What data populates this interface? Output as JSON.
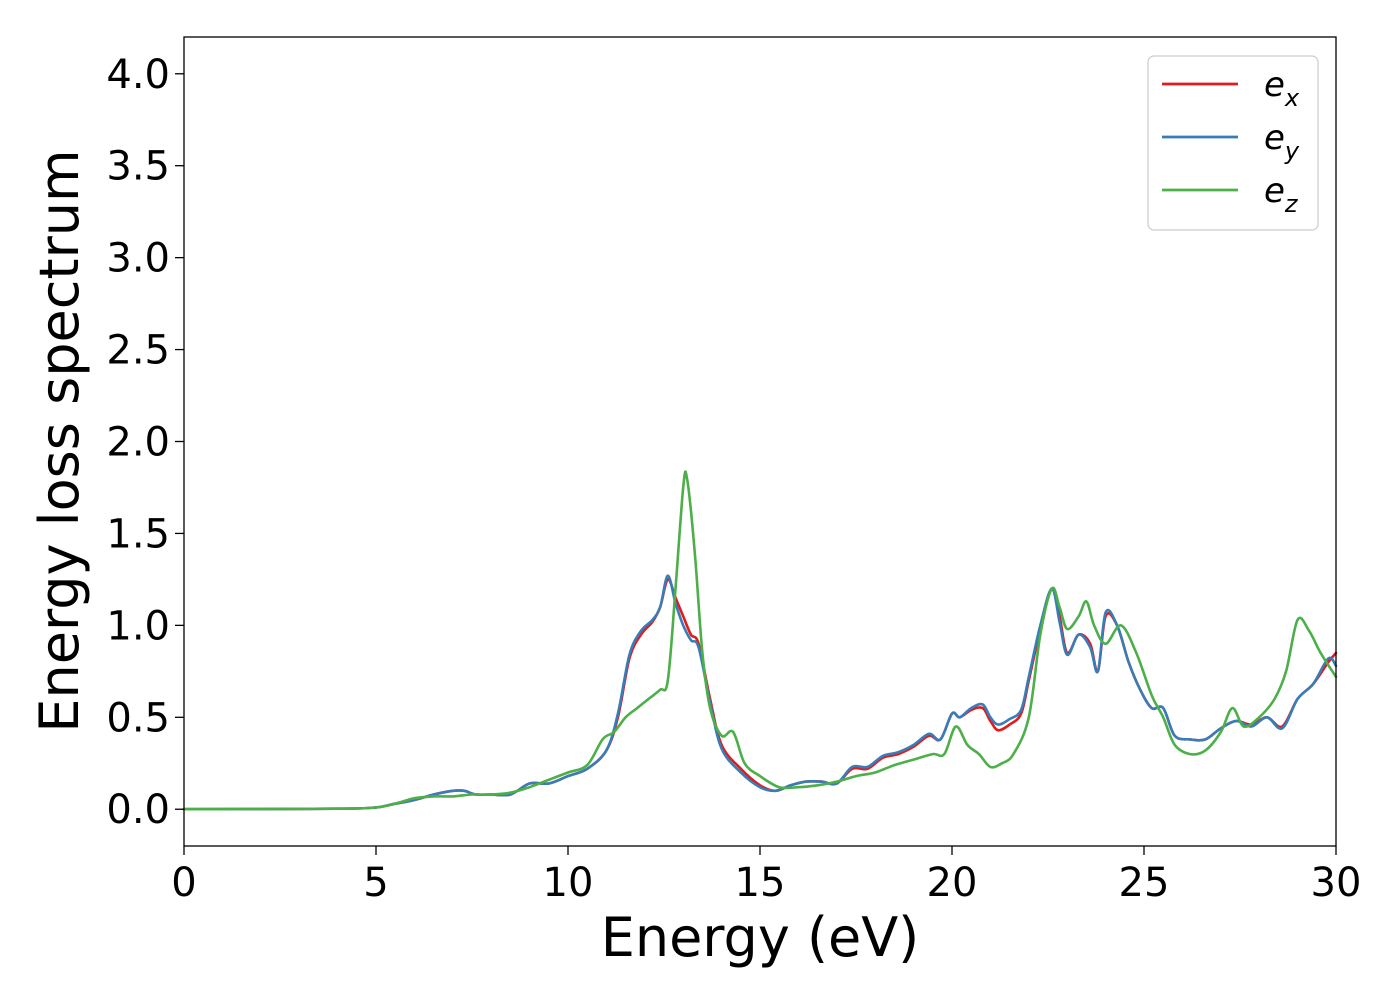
{
  "chart_data": {
    "type": "line",
    "title": "",
    "xlabel": "Energy (eV)",
    "ylabel": "Energy loss spectrum",
    "xlim": [
      0,
      30
    ],
    "ylim": [
      -0.2,
      4.2
    ],
    "xticks": [
      0,
      5,
      10,
      15,
      20,
      25,
      30
    ],
    "yticks": [
      0.0,
      0.5,
      1.0,
      1.5,
      2.0,
      2.5,
      3.0,
      3.5,
      4.0
    ],
    "xtick_labels": [
      "0",
      "5",
      "10",
      "15",
      "20",
      "25",
      "30"
    ],
    "ytick_labels": [
      "0.0",
      "0.5",
      "1.0",
      "1.5",
      "2.0",
      "2.5",
      "3.0",
      "3.5",
      "4.0"
    ],
    "grid": false,
    "legend_position": "top-right",
    "series": [
      {
        "name": "e_x",
        "base": "e",
        "sub": "x",
        "color": "#e41a1c",
        "x": [
          0,
          4,
          5,
          5.5,
          6,
          6.5,
          7,
          7.3,
          7.6,
          8,
          8.5,
          9,
          9.5,
          10,
          10.5,
          11,
          11.3,
          11.6,
          11.9,
          12.2,
          12.4,
          12.6,
          12.8,
          13,
          13.2,
          13.4,
          13.7,
          14,
          14.5,
          15,
          15.4,
          15.8,
          16.2,
          16.6,
          17,
          17.4,
          17.8,
          18.2,
          18.6,
          19,
          19.4,
          19.7,
          20,
          20.2,
          20.5,
          20.8,
          21,
          21.2,
          21.5,
          21.8,
          22,
          22.3,
          22.6,
          22.8,
          23,
          23.3,
          23.6,
          23.8,
          24,
          24.3,
          24.6,
          24.9,
          25.2,
          25.5,
          25.8,
          26.2,
          26.6,
          27,
          27.4,
          27.8,
          28.2,
          28.6,
          29,
          29.4,
          29.8,
          30
        ],
        "y": [
          0,
          0.003,
          0.01,
          0.03,
          0.05,
          0.08,
          0.1,
          0.1,
          0.08,
          0.08,
          0.08,
          0.14,
          0.14,
          0.18,
          0.22,
          0.32,
          0.5,
          0.82,
          0.95,
          1.02,
          1.1,
          1.25,
          1.15,
          1.05,
          0.95,
          0.9,
          0.6,
          0.35,
          0.22,
          0.13,
          0.1,
          0.13,
          0.15,
          0.15,
          0.14,
          0.22,
          0.22,
          0.28,
          0.3,
          0.34,
          0.4,
          0.38,
          0.52,
          0.5,
          0.54,
          0.55,
          0.48,
          0.43,
          0.46,
          0.52,
          0.7,
          0.98,
          1.2,
          1.05,
          0.85,
          0.95,
          0.9,
          0.75,
          1.05,
          1.0,
          0.8,
          0.65,
          0.55,
          0.55,
          0.4,
          0.38,
          0.38,
          0.44,
          0.48,
          0.46,
          0.5,
          0.45,
          0.6,
          0.68,
          0.8,
          0.85
        ]
      },
      {
        "name": "e_y",
        "base": "e",
        "sub": "y",
        "color": "#377eb8",
        "x": [
          0,
          4,
          5,
          5.5,
          6,
          6.5,
          7,
          7.3,
          7.6,
          8,
          8.5,
          9,
          9.5,
          10,
          10.5,
          11,
          11.3,
          11.6,
          11.9,
          12.2,
          12.4,
          12.6,
          12.8,
          13,
          13.2,
          13.4,
          13.7,
          14,
          14.5,
          15,
          15.4,
          15.8,
          16.2,
          16.6,
          17,
          17.4,
          17.8,
          18.2,
          18.6,
          19,
          19.4,
          19.7,
          20,
          20.2,
          20.5,
          20.8,
          21,
          21.2,
          21.5,
          21.8,
          22,
          22.3,
          22.6,
          22.8,
          23,
          23.3,
          23.6,
          23.8,
          24,
          24.3,
          24.6,
          24.9,
          25.2,
          25.5,
          25.8,
          26.2,
          26.6,
          27,
          27.4,
          27.8,
          28.2,
          28.6,
          29,
          29.4,
          29.8,
          30
        ],
        "y": [
          0,
          0.003,
          0.01,
          0.03,
          0.05,
          0.08,
          0.1,
          0.1,
          0.08,
          0.08,
          0.08,
          0.14,
          0.14,
          0.18,
          0.22,
          0.32,
          0.52,
          0.84,
          0.97,
          1.03,
          1.1,
          1.27,
          1.12,
          1.0,
          0.92,
          0.88,
          0.58,
          0.33,
          0.2,
          0.12,
          0.1,
          0.13,
          0.15,
          0.15,
          0.14,
          0.23,
          0.23,
          0.29,
          0.31,
          0.35,
          0.41,
          0.38,
          0.52,
          0.5,
          0.55,
          0.57,
          0.5,
          0.46,
          0.49,
          0.54,
          0.72,
          1.0,
          1.2,
          1.02,
          0.84,
          0.95,
          0.88,
          0.75,
          1.07,
          1.0,
          0.8,
          0.65,
          0.55,
          0.55,
          0.4,
          0.38,
          0.38,
          0.44,
          0.48,
          0.45,
          0.5,
          0.44,
          0.6,
          0.68,
          0.82,
          0.78
        ]
      },
      {
        "name": "e_z",
        "base": "e",
        "sub": "z",
        "color": "#4daf4a",
        "x": [
          0,
          4,
          5,
          5.5,
          6,
          6.5,
          7,
          7.5,
          8,
          8.5,
          9,
          9.5,
          10,
          10.5,
          10.9,
          11.2,
          11.5,
          11.8,
          12.1,
          12.4,
          12.6,
          12.8,
          13,
          13.1,
          13.3,
          13.5,
          13.7,
          14,
          14.3,
          14.6,
          15,
          15.5,
          16,
          16.5,
          17,
          17.5,
          18,
          18.5,
          19,
          19.5,
          19.8,
          20.1,
          20.4,
          20.7,
          21,
          21.3,
          21.6,
          22,
          22.3,
          22.6,
          22.8,
          23,
          23.3,
          23.5,
          23.7,
          24,
          24.4,
          24.8,
          25.2,
          25.5,
          25.8,
          26.2,
          26.6,
          27,
          27.3,
          27.6,
          28,
          28.4,
          28.7,
          29,
          29.3,
          29.6,
          30
        ],
        "y": [
          0,
          0.003,
          0.01,
          0.03,
          0.06,
          0.07,
          0.07,
          0.08,
          0.08,
          0.09,
          0.12,
          0.16,
          0.2,
          0.24,
          0.38,
          0.42,
          0.5,
          0.55,
          0.6,
          0.65,
          0.7,
          1.2,
          1.75,
          1.8,
          1.4,
          0.85,
          0.55,
          0.4,
          0.42,
          0.25,
          0.18,
          0.12,
          0.12,
          0.13,
          0.15,
          0.18,
          0.2,
          0.24,
          0.27,
          0.3,
          0.3,
          0.45,
          0.35,
          0.3,
          0.23,
          0.25,
          0.3,
          0.5,
          0.95,
          1.2,
          1.1,
          0.98,
          1.05,
          1.13,
          1.0,
          0.9,
          1.0,
          0.85,
          0.62,
          0.5,
          0.35,
          0.3,
          0.32,
          0.42,
          0.55,
          0.45,
          0.5,
          0.6,
          0.75,
          1.03,
          0.97,
          0.85,
          0.72
        ]
      }
    ]
  }
}
